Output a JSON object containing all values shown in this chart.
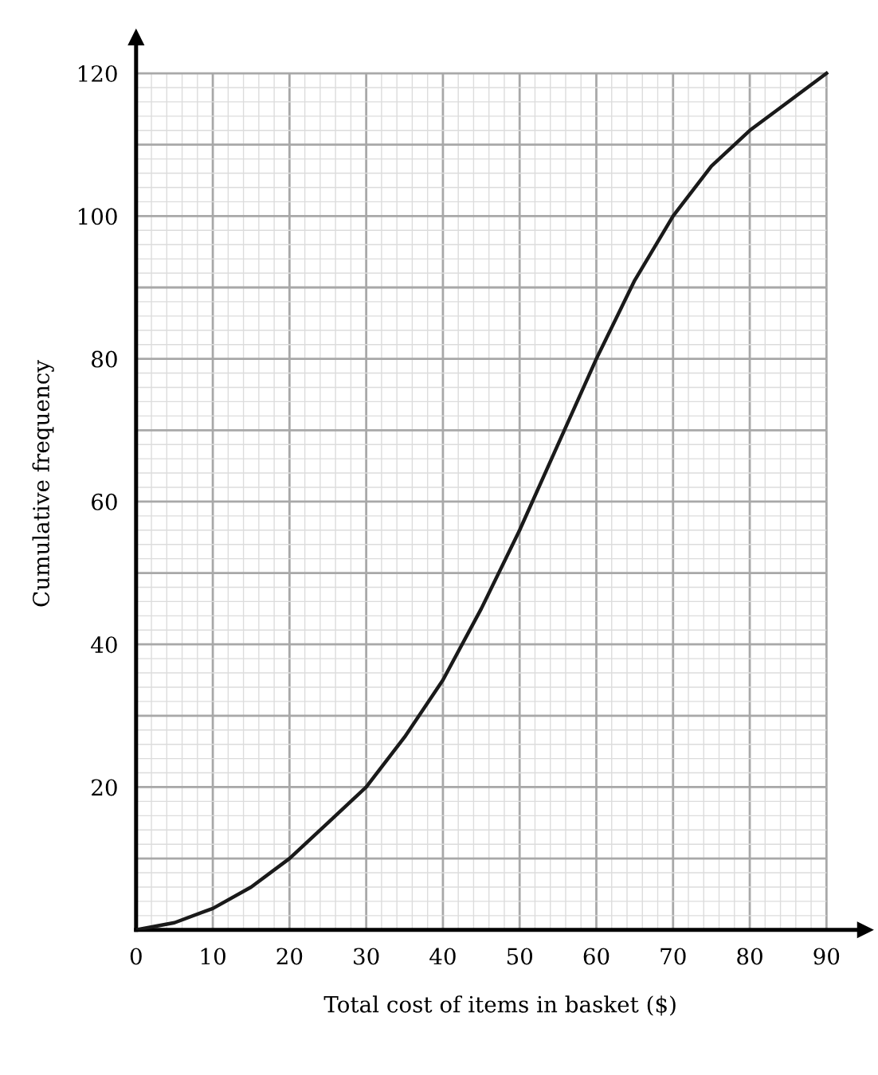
{
  "chart_data": {
    "type": "line",
    "xlabel": "Total cost of items in basket ($)",
    "ylabel": "Cumulative frequency",
    "x": [
      0,
      5,
      10,
      15,
      20,
      25,
      30,
      35,
      40,
      45,
      50,
      55,
      60,
      65,
      70,
      75,
      80,
      85,
      90
    ],
    "series": [
      {
        "color": "#1a1a1a",
        "values": [
          0,
          1,
          3,
          6,
          10,
          15,
          20,
          27,
          35,
          45,
          56,
          68,
          80,
          91,
          100,
          107,
          112,
          116,
          120
        ]
      }
    ],
    "xlim": [
      0,
      95
    ],
    "ylim": [
      0,
      125
    ],
    "xticks": [
      0,
      10,
      20,
      30,
      40,
      50,
      60,
      70,
      80,
      90
    ],
    "yticks": [
      {
        "value": 0,
        "label": null
      },
      {
        "value": 10,
        "label": null
      },
      20,
      {
        "value": 30,
        "label": null
      },
      40,
      {
        "value": 50,
        "label": null
      },
      60,
      {
        "value": 70,
        "label": null
      },
      80,
      {
        "value": 90,
        "label": null
      },
      100,
      {
        "value": 110,
        "label": null
      },
      120
    ],
    "grid": true,
    "marker": "none",
    "line_style": "solid"
  }
}
